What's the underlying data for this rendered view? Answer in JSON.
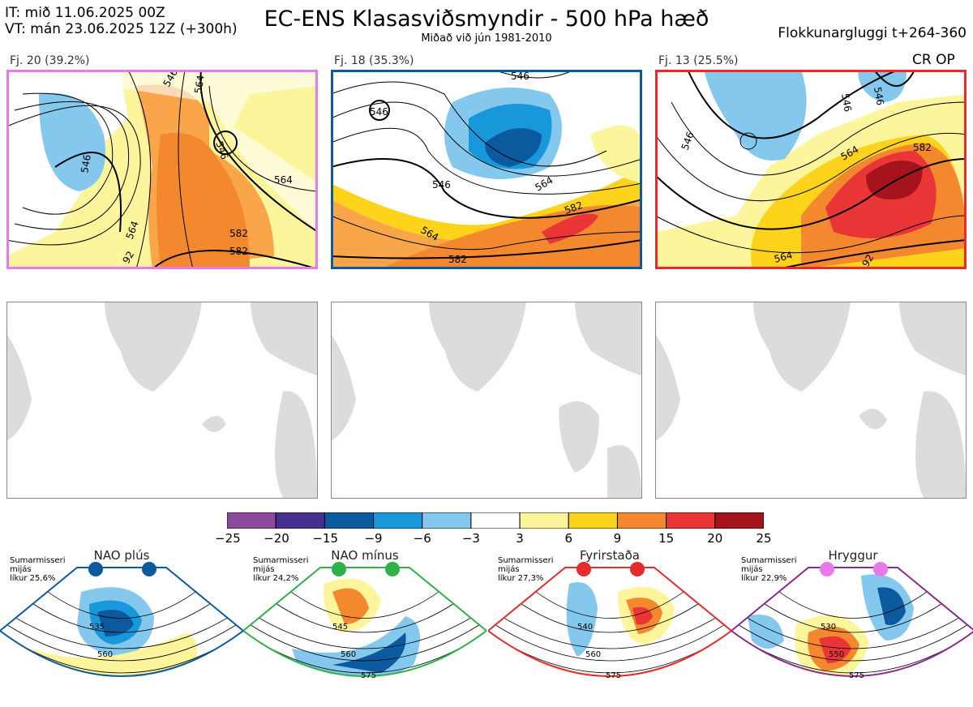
{
  "header": {
    "it_line": "IT: mið 11.06.2025 00Z",
    "vt_line": "VT: mán 23.06.2025 12Z  (+300h)",
    "title": "EC-ENS Klasasviðsmyndir - 500 hPa hæð",
    "subtitle": "Miðað við jún 1981-2010",
    "window": "Flokkunargluggi t+264-360"
  },
  "panels": [
    {
      "label": "Fj. 20 (39.2%)",
      "border": "#e879e8",
      "contours": [
        "546",
        "564",
        "564",
        "546",
        "564",
        "582",
        "582",
        "546",
        "92"
      ]
    },
    {
      "label": "Fj. 18 (35.3%)",
      "border": "#0b5aa0",
      "contours": [
        "546",
        "546",
        "564",
        "564",
        "582",
        "582",
        "546"
      ]
    },
    {
      "label": "Fj. 13 (25.5%)",
      "border": "#e82a2a",
      "badge": "CR OP",
      "contours": [
        "546",
        "546",
        "564",
        "582",
        "564",
        "92",
        "546"
      ]
    }
  ],
  "colorbar": {
    "ticks": [
      "−25",
      "−20",
      "−15",
      "−9",
      "−6",
      "−3",
      "3",
      "6",
      "9",
      "15",
      "20",
      "25"
    ],
    "colors": [
      "#8b4a9c",
      "#45308f",
      "#0b5aa0",
      "#1997db",
      "#84c8ee",
      "#ffffff",
      "#fdf59c",
      "#fdd31c",
      "#f4882e",
      "#e93535",
      "#a5141c"
    ]
  },
  "regimes": [
    {
      "name": "NAO plús",
      "note1": "Sumarmisseri",
      "note2": "mijás",
      "note3": "líkur 25,6%",
      "dot_color": "#0b5aa0",
      "outline": "#0b5aa0",
      "c1": "535",
      "c2": "560"
    },
    {
      "name": "NAO mínus",
      "note1": "Sumarmisseri",
      "note2": "mijás",
      "note3": "líkur 24,2%",
      "dot_color": "#2db24a",
      "outline": "#2db24a",
      "c1": "545",
      "c2": "560",
      "c3": "575"
    },
    {
      "name": "Fyrirstaða",
      "note1": "Sumarmisseri",
      "note2": "mijás",
      "note3": "líkur 27,3%",
      "dot_color": "#e82a2a",
      "outline": "#e82a2a",
      "c1": "540",
      "c2": "560",
      "c3": "575"
    },
    {
      "name": "Hryggur",
      "note1": "Sumarmisseri",
      "note2": "mijás",
      "note3": "líkur 22,9%",
      "dot_color": "#e879e8",
      "outline": "#8b2a8b",
      "c1": "530",
      "c2": "550",
      "c3": "575"
    }
  ]
}
